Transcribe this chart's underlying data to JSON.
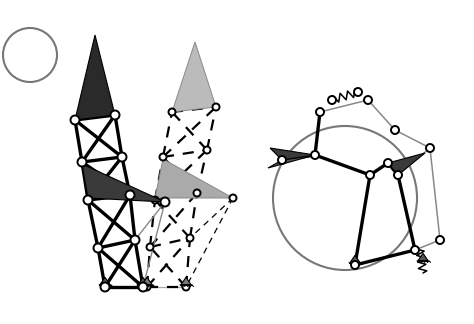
{
  "bg_color": "#ffffff",
  "fig_w": 4.74,
  "fig_h": 3.24,
  "dpi": 100
}
